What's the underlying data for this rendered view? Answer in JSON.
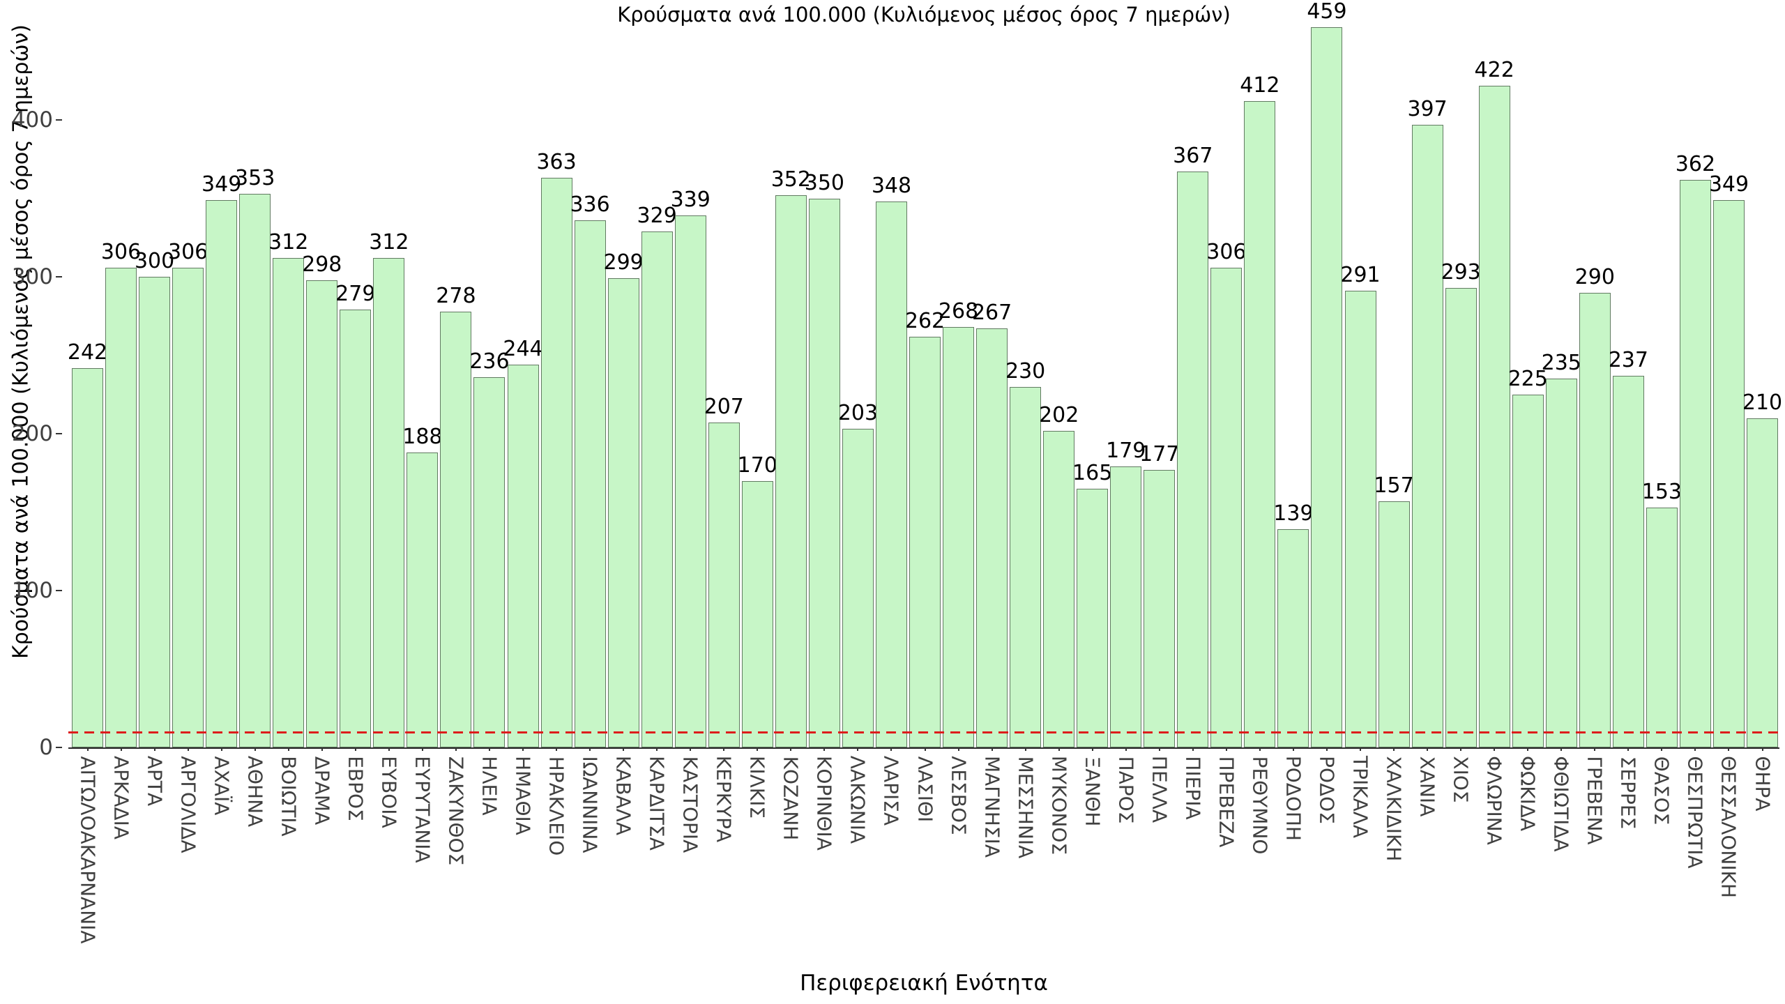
{
  "chart_data": {
    "type": "bar",
    "title": "Κρούσματα ανά 100.000 (Κυλιόμενος μέσος όρος 7 ημερών)",
    "xlabel": "Περιφερειακή Ενότητα",
    "ylabel": "Κρούσματα ανά 100.000 (Κυλιόμενος μέσος όρος 7 ημερών)",
    "categories": [
      "ΑΙΤΩΛΟΑΚΑΡΝΑΝΙΑ",
      "ΑΡΚΑΔΙΑ",
      "ΑΡΤΑ",
      "ΑΡΓΟΛΙΔΑ",
      "ΑΧΑΪΑ",
      "ΑΘΗΝΑ",
      "ΒΟΙΩΤΙΑ",
      "ΔΡΑΜΑ",
      "ΕΒΡΟΣ",
      "ΕΥΒΟΙΑ",
      "ΕΥΡΥΤΑΝΙΑ",
      "ΖΑΚΥΝΘΟΣ",
      "ΗΛΕΙΑ",
      "ΗΜΑΘΙΑ",
      "ΗΡΑΚΛΕΙΟ",
      "ΙΩΑΝΝΙΝΑ",
      "ΚΑΒΑΛΑ",
      "ΚΑΡΔΙΤΣΑ",
      "ΚΑΣΤΟΡΙΑ",
      "ΚΕΡΚΥΡΑ",
      "ΚΙΛΚΙΣ",
      "ΚΟΖΑΝΗ",
      "ΚΟΡΙΝΘΙΑ",
      "ΛΑΚΩΝΙΑ",
      "ΛΑΡΙΣΑ",
      "ΛΑΣΙΘΙ",
      "ΛΕΣΒΟΣ",
      "ΜΑΓΝΗΣΙΑ",
      "ΜΕΣΣΗΝΙΑ",
      "ΜΥΚΟΝΟΣ",
      "ΞΑΝΘΗ",
      "ΠΑΡΟΣ",
      "ΠΕΛΛΑ",
      "ΠΙΕΡΙΑ",
      "ΠΡΕΒΕΖΑ",
      "ΡΕΘΥΜΝΟ",
      "ΡΟΔΟΠΗ",
      "ΡΟΔΟΣ",
      "ΤΡΙΚΑΛΑ",
      "ΧΑΛΚΙΔΙΚΗ",
      "ΧΑΝΙΑ",
      "ΧΙΟΣ",
      "ΦΛΩΡΙΝΑ",
      "ΦΩΚΙΔΑ",
      "ΦΘΙΩΤΙΔΑ",
      "ΓΡΕΒΕΝΑ",
      "ΣΕΡΡΕΣ",
      "ΘΑΣΟΣ",
      "ΘΕΣΠΡΩΤΙΑ",
      "ΘΕΣΣΑΛΟΝΙΚΗ",
      "ΘΗΡΑ"
    ],
    "values": [
      242,
      306,
      300,
      306,
      349,
      353,
      312,
      298,
      279,
      312,
      188,
      278,
      236,
      244,
      363,
      336,
      299,
      329,
      339,
      207,
      170,
      352,
      350,
      203,
      348,
      262,
      268,
      267,
      230,
      202,
      165,
      179,
      177,
      367,
      306,
      412,
      139,
      459,
      291,
      157,
      397,
      293,
      422,
      225,
      235,
      290,
      237,
      153,
      362,
      349,
      210
    ],
    "bar_value_labels_shown": true,
    "yticks": [
      0,
      100,
      200,
      300,
      400
    ],
    "ylim": [
      0,
      470
    ],
    "grid": false,
    "legend": "none",
    "reference_line": {
      "value": 10,
      "color": "#dd1c1c",
      "style": "dashed"
    },
    "colors": {
      "bar_fill": "#c7f6c7",
      "bar_border": "#617a61",
      "value_text": "#000000",
      "tick_text": "#404040",
      "axis_line": "#2a2a2a"
    }
  }
}
